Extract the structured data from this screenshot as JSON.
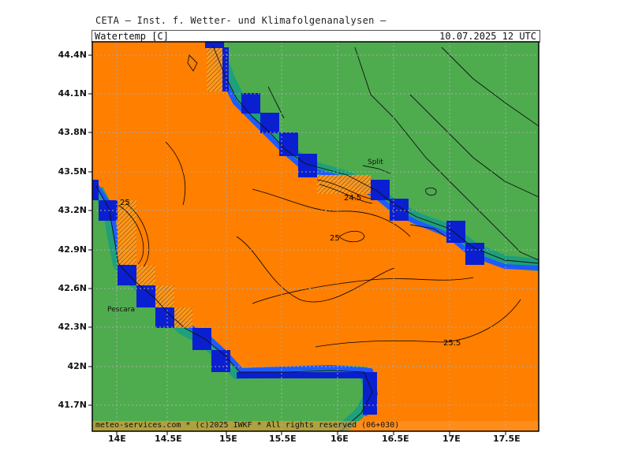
{
  "header": {
    "title": "CETA — Inst. f. Wetter- und Klimafolgenanalysen —",
    "parameter": "Watertemp [C]",
    "valid_time": "10.07.2025 12 UTC"
  },
  "footer": {
    "credit": "meteo-services.com * (c)2025 IWKF * All rights reserved (06+030)"
  },
  "axes": {
    "lon_ticks": [
      "14E",
      "14.5E",
      "15E",
      "15.5E",
      "16E",
      "16.5E",
      "17E",
      "17.5E"
    ],
    "lat_ticks": [
      "44.4N",
      "44.1N",
      "43.8N",
      "43.5N",
      "43.2N",
      "42.9N",
      "42.6N",
      "42.3N",
      "42N",
      "41.7N"
    ]
  },
  "places": [
    {
      "name": "Split"
    },
    {
      "name": "Pescara"
    }
  ],
  "contour_labels": [
    "25",
    "24.5",
    "25",
    "25.5"
  ],
  "colors": {
    "sea_warm": "#ff7f00",
    "sea_edge": "#ff9933",
    "land": "#4eac4e",
    "coast_band": "#1f9f7a",
    "coast_blue": "#1e5aff",
    "coast_navy": "#0a1fd0",
    "grid": "#aaaaaa"
  }
}
